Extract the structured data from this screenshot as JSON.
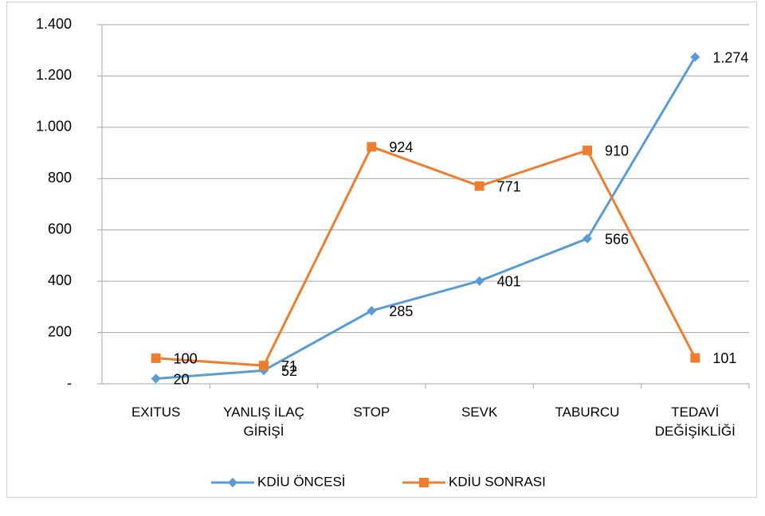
{
  "chart_data": {
    "type": "line",
    "categories": [
      "EXITUS",
      "YANLIŞ İLAÇ GİRİŞİ",
      "STOP",
      "SEVK",
      "TABURCU",
      "TEDAVİ DEĞİŞİKLİĞİ"
    ],
    "series": [
      {
        "name": "KDİU ÖNCESİ",
        "color": "#5b9bd5",
        "marker": "diamond",
        "values": [
          20,
          52,
          285,
          401,
          566,
          1274
        ],
        "value_labels": [
          "20",
          "52",
          "285",
          "401",
          "566",
          "1.274"
        ]
      },
      {
        "name": "KDİU SONRASI",
        "color": "#ed7d31",
        "marker": "square",
        "values": [
          100,
          71,
          924,
          771,
          910,
          101
        ]
      }
    ],
    "ylim": [
      0,
      1400
    ],
    "yticks": [
      {
        "value": 0,
        "label": "-"
      },
      200,
      400,
      600,
      800,
      {
        "value": 1000,
        "label": "1.000"
      },
      {
        "value": 1200,
        "label": "1.200"
      },
      {
        "value": 1400,
        "label": "1.400"
      }
    ],
    "grid": true,
    "legend": "bottom"
  }
}
